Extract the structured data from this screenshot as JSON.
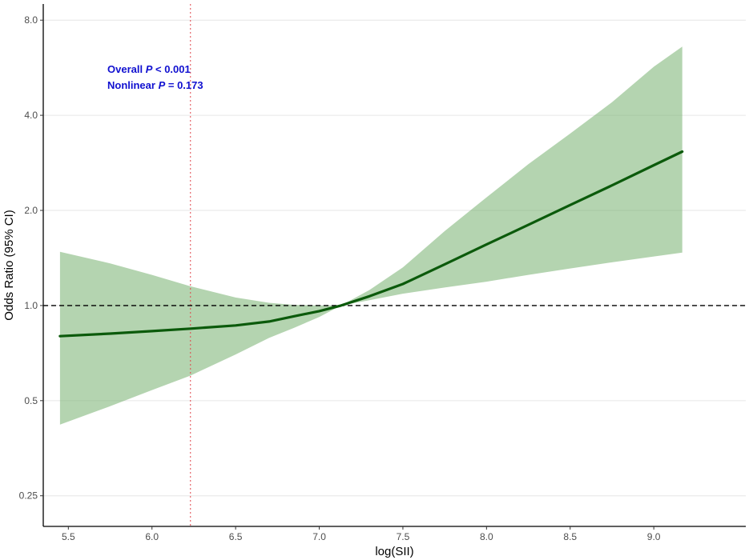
{
  "chart_data": {
    "type": "line",
    "xlabel": "log(SII)",
    "ylabel": "Odds Ratio (95% CI)",
    "y_scale": "log2",
    "xlim": [
      5.35,
      9.55
    ],
    "ylim": [
      0.2,
      9.0
    ],
    "x_ticks": [
      5.5,
      6.0,
      6.5,
      7.0,
      7.5,
      8.0,
      8.5,
      9.0
    ],
    "x_tick_labels": [
      "5.5",
      "6.0",
      "6.5",
      "7.0",
      "7.5",
      "8.0",
      "8.5",
      "9.0"
    ],
    "y_ticks": [
      0.25,
      0.5,
      1.0,
      2.0,
      4.0,
      8.0
    ],
    "y_tick_labels": [
      "0.25",
      "0.5",
      "1.0",
      "2.0",
      "4.0",
      "8.0"
    ],
    "grid": "horizontal",
    "reference_hline": 1.0,
    "reference_vline": 6.23,
    "annotations": [
      {
        "prefix": "Overall ",
        "italic": "P",
        "suffix": " < 0.001"
      },
      {
        "prefix": "Nonlinear ",
        "italic": "P",
        "suffix": " = 0.173"
      }
    ],
    "series": [
      {
        "x": [
          5.45,
          5.75,
          6.0,
          6.23,
          6.5,
          6.7,
          6.85,
          7.0,
          7.13,
          7.3,
          7.5,
          7.75,
          8.0,
          8.25,
          8.5,
          8.75,
          9.0,
          9.17
        ],
        "y": [
          0.8,
          0.815,
          0.83,
          0.845,
          0.865,
          0.89,
          0.925,
          0.96,
          1.0,
          1.07,
          1.17,
          1.35,
          1.56,
          1.8,
          2.08,
          2.4,
          2.78,
          3.07
        ],
        "lower": [
          0.42,
          0.48,
          0.54,
          0.6,
          0.7,
          0.79,
          0.85,
          0.92,
          1.0,
          1.04,
          1.09,
          1.14,
          1.19,
          1.25,
          1.31,
          1.37,
          1.43,
          1.47
        ],
        "upper": [
          1.48,
          1.36,
          1.25,
          1.15,
          1.06,
          1.02,
          1.005,
          1.0,
          1.0,
          1.12,
          1.32,
          1.72,
          2.2,
          2.8,
          3.5,
          4.4,
          5.7,
          6.6
        ]
      }
    ],
    "colors": {
      "line": "#0b5a0b",
      "ribbon": "#76b06f",
      "annotation": "#1010d0",
      "vline": "#e0474c",
      "hline": "#000000",
      "grid": "#e6e6e6"
    }
  }
}
